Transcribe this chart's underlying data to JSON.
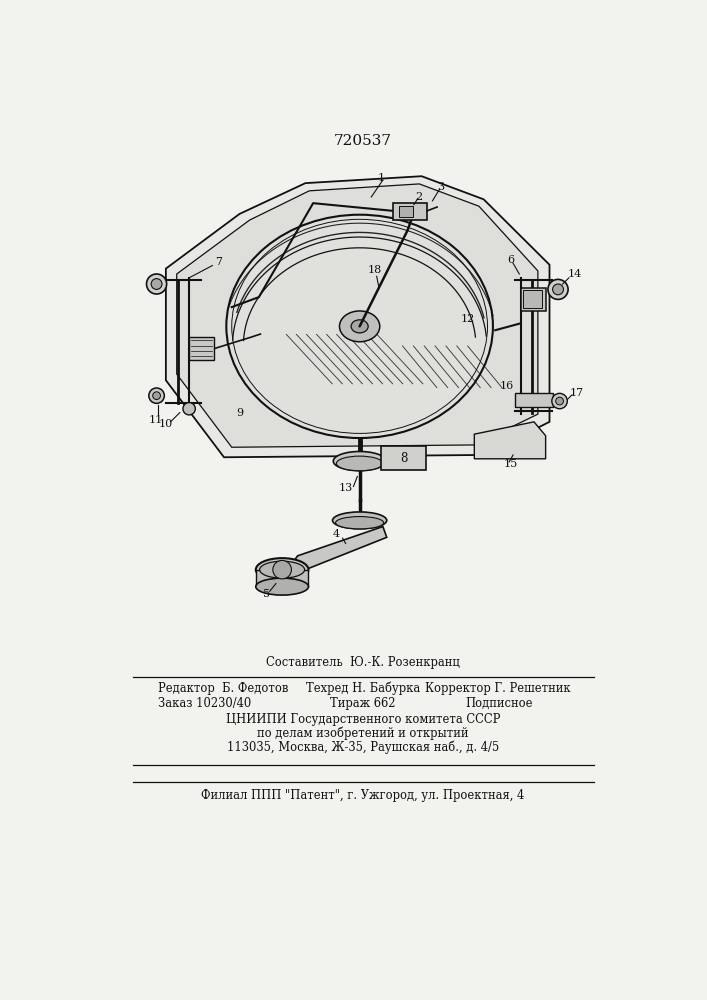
{
  "patent_number": "720537",
  "bg": "#f2f2ee",
  "lc": "#111111",
  "footer": {
    "composer": "Составитель  Ю.-К. Розенкранц",
    "editor": "Редактор  Б. Федотов",
    "techred": "Техред Н. Бабурка",
    "corrector": "Корректор Г. Решетник",
    "order": "Заказ 10230/40",
    "tirazh": "Тираж 662",
    "podpisnoe": "Подписное",
    "org1": "ЦНИИПИ Государственного комитета СССР",
    "org2": "по делам изобретений и открытий",
    "org3": "113035, Москва, Ж-35, Раушская наб., д. 4/5",
    "filial": "Филиал ППП \"Патент\", г. Ужгород, ул. Проектная, 4"
  }
}
